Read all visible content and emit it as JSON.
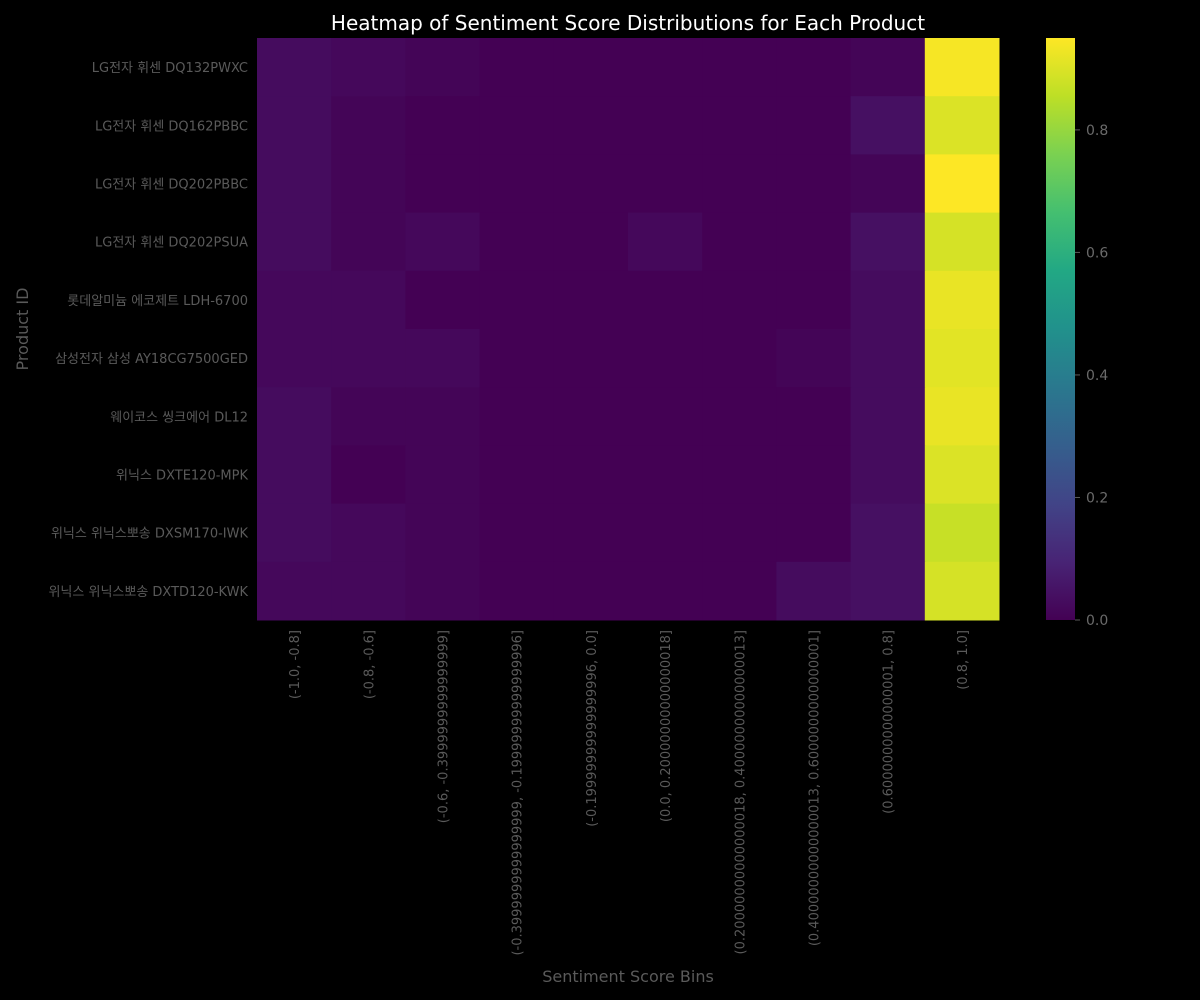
{
  "chart_data": {
    "type": "heatmap",
    "title": "Heatmap of Sentiment Score Distributions for Each Product",
    "xlabel": "Sentiment Score Bins",
    "ylabel": "Product ID",
    "colormap": "viridis",
    "colorbar": {
      "range": [
        0.0,
        0.95
      ],
      "ticks": [
        0.0,
        0.2,
        0.4,
        0.6,
        0.8
      ],
      "tick_labels": [
        "0.0",
        "0.2",
        "0.4",
        "0.6",
        "0.8"
      ]
    },
    "x_categories": [
      "(-1.0, -0.8]",
      "(-0.8, -0.6]",
      "(-0.6, -0.3999999999999999]",
      "(-0.3999999999999999, -0.19999999999999996]",
      "(-0.19999999999999996, 0.0]",
      "(0.0, 0.20000000000000018]",
      "(0.20000000000000018, 0.40000000000000013]",
      "(0.40000000000000013, 0.6000000000000001]",
      "(0.6000000000000001, 0.8]",
      "(0.8, 1.0]"
    ],
    "y_categories": [
      "LG전자 휘센 DQ132PWXC",
      "LG전자 휘센 DQ162PBBC",
      "LG전자 휘센 DQ202PBBC",
      "LG전자 휘센 DQ202PSUA",
      "롯데알미늄 에코제트 LDH-6700",
      "삼성전자 삼성 AY18CG7500GED",
      "웨이코스 씽크에어 DL12",
      "위닉스 DXTE120-MPK",
      "위닉스 위닉스뽀송 DXSM170-IWK",
      "위닉스 위닉스뽀송 DXTD120-KWK"
    ],
    "values": [
      [
        0.03,
        0.02,
        0.01,
        0.0,
        0.0,
        0.0,
        0.0,
        0.0,
        0.01,
        0.94
      ],
      [
        0.03,
        0.01,
        0.0,
        0.0,
        0.0,
        0.0,
        0.0,
        0.0,
        0.04,
        0.9
      ],
      [
        0.03,
        0.01,
        0.0,
        0.0,
        0.0,
        0.0,
        0.0,
        0.0,
        0.01,
        0.95
      ],
      [
        0.03,
        0.01,
        0.02,
        0.0,
        0.0,
        0.02,
        0.0,
        0.0,
        0.04,
        0.89
      ],
      [
        0.02,
        0.02,
        0.0,
        0.0,
        0.0,
        0.0,
        0.0,
        0.0,
        0.03,
        0.92
      ],
      [
        0.02,
        0.02,
        0.02,
        0.0,
        0.0,
        0.0,
        0.0,
        0.01,
        0.03,
        0.91
      ],
      [
        0.03,
        0.01,
        0.01,
        0.0,
        0.0,
        0.0,
        0.0,
        0.0,
        0.03,
        0.92
      ],
      [
        0.03,
        0.0,
        0.01,
        0.0,
        0.0,
        0.0,
        0.0,
        0.0,
        0.03,
        0.9
      ],
      [
        0.03,
        0.02,
        0.01,
        0.0,
        0.0,
        0.0,
        0.0,
        0.0,
        0.04,
        0.87
      ],
      [
        0.02,
        0.02,
        0.01,
        0.0,
        0.0,
        0.0,
        0.0,
        0.03,
        0.04,
        0.89
      ]
    ]
  }
}
